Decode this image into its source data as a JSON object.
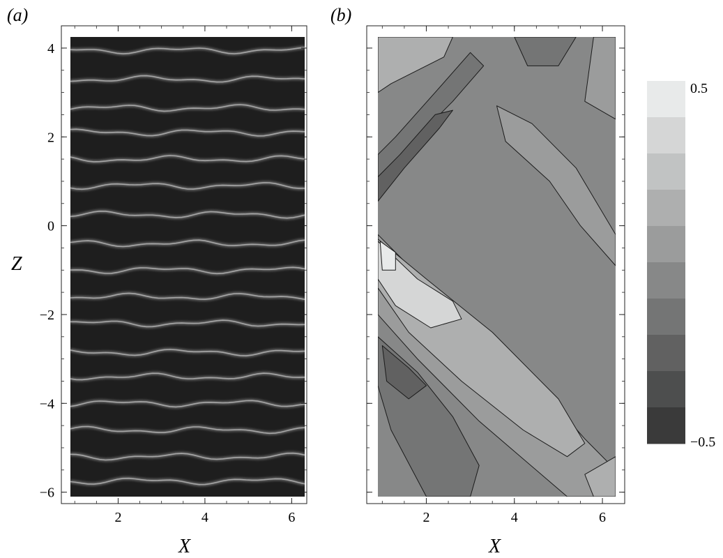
{
  "chart_data": [
    {
      "type": "image",
      "panel_label": "(a)",
      "xlabel": "X",
      "ylabel": "Z",
      "xlim": [
        0.9,
        6.3
      ],
      "ylim": [
        -6.1,
        4.25
      ],
      "xticks": [
        {
          "value": 2,
          "label": "2"
        },
        {
          "value": 4,
          "label": "4"
        },
        {
          "value": 6,
          "label": "6"
        }
      ],
      "yticks": [
        {
          "value": 4,
          "label": "4"
        },
        {
          "value": 2,
          "label": "2"
        },
        {
          "value": 0,
          "label": "0"
        },
        {
          "value": -2,
          "label": "−2"
        },
        {
          "value": -4,
          "label": "−4"
        },
        {
          "value": -6,
          "label": "−6"
        }
      ],
      "streak_z": [
        3.95,
        3.3,
        2.65,
        2.1,
        1.5,
        0.9,
        0.25,
        -0.4,
        -1.0,
        -1.6,
        -2.2,
        -2.85,
        -3.4,
        -4.0,
        -4.6,
        -5.2,
        -5.75
      ],
      "background_color": "#1e1e1e",
      "streak_color": "#e6e6e6"
    },
    {
      "type": "contour",
      "panel_label": "(b)",
      "xlabel": "X",
      "xlim": [
        0.9,
        6.3
      ],
      "ylim": [
        -6.1,
        4.25
      ],
      "xticks": [
        {
          "value": 2,
          "label": "2"
        },
        {
          "value": 4,
          "label": "4"
        },
        {
          "value": 6,
          "label": "6"
        }
      ],
      "yticks": [
        4,
        2,
        0,
        -2,
        -4,
        -6
      ],
      "colorbar": {
        "min": -0.5,
        "max": 0.5,
        "levels": 10,
        "max_label": "0.5",
        "min_label": "−0.5",
        "light_color": "#e8eaea",
        "dark_color": "#3a3a3a"
      }
    }
  ]
}
